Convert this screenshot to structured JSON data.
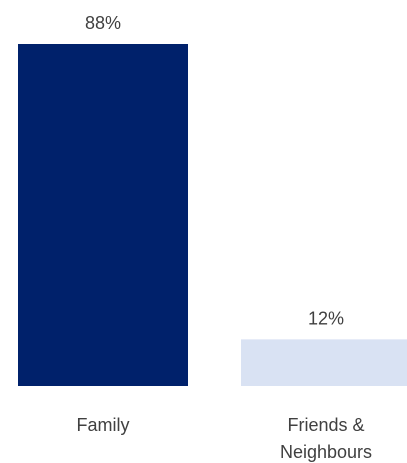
{
  "chart_data": {
    "type": "bar",
    "categories": [
      "Family",
      "Friends & Neighbours"
    ],
    "category_lines": [
      [
        "Family"
      ],
      [
        "Friends &",
        "Neighbours"
      ]
    ],
    "values": [
      88,
      12
    ],
    "value_labels": [
      "88%",
      "12%"
    ],
    "ylim": [
      0,
      88
    ],
    "grid": false,
    "bar_colors": [
      "#00216b",
      "#d9e2f3"
    ],
    "label_color": "#404040"
  }
}
